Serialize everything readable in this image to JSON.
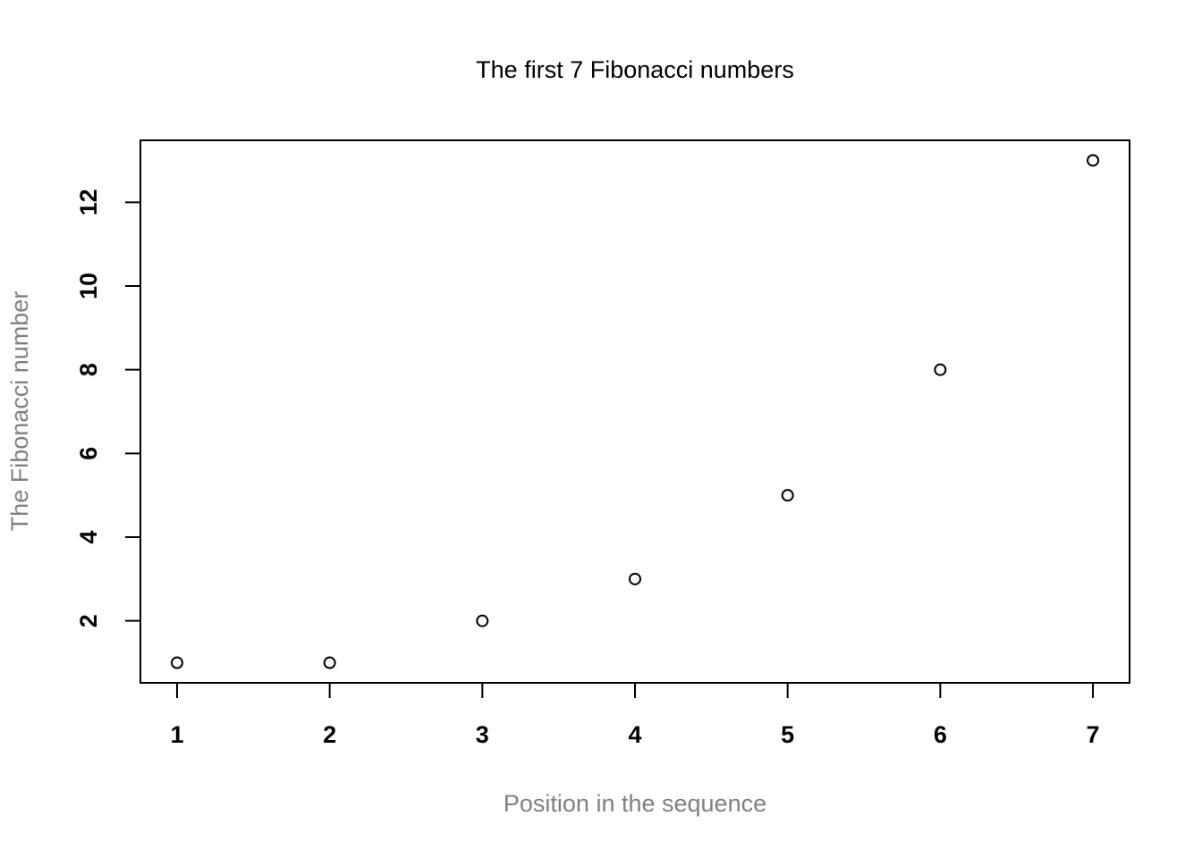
{
  "chart_data": {
    "type": "scatter",
    "title": "The first 7 Fibonacci numbers",
    "x_label": "Position in the sequence",
    "y_label": "The Fibonacci number",
    "x": [
      1,
      2,
      3,
      4,
      5,
      6,
      7
    ],
    "values": [
      1,
      1,
      2,
      3,
      5,
      8,
      13
    ],
    "color": "#000000",
    "label_color": "#808080",
    "xlim": [
      0.76,
      7.24
    ],
    "ylim": [
      0.52,
      13.48
    ],
    "xticks": [
      1,
      2,
      3,
      4,
      5,
      6,
      7
    ],
    "yticks": [
      2,
      4,
      6,
      8,
      10,
      12
    ],
    "grid": false
  }
}
